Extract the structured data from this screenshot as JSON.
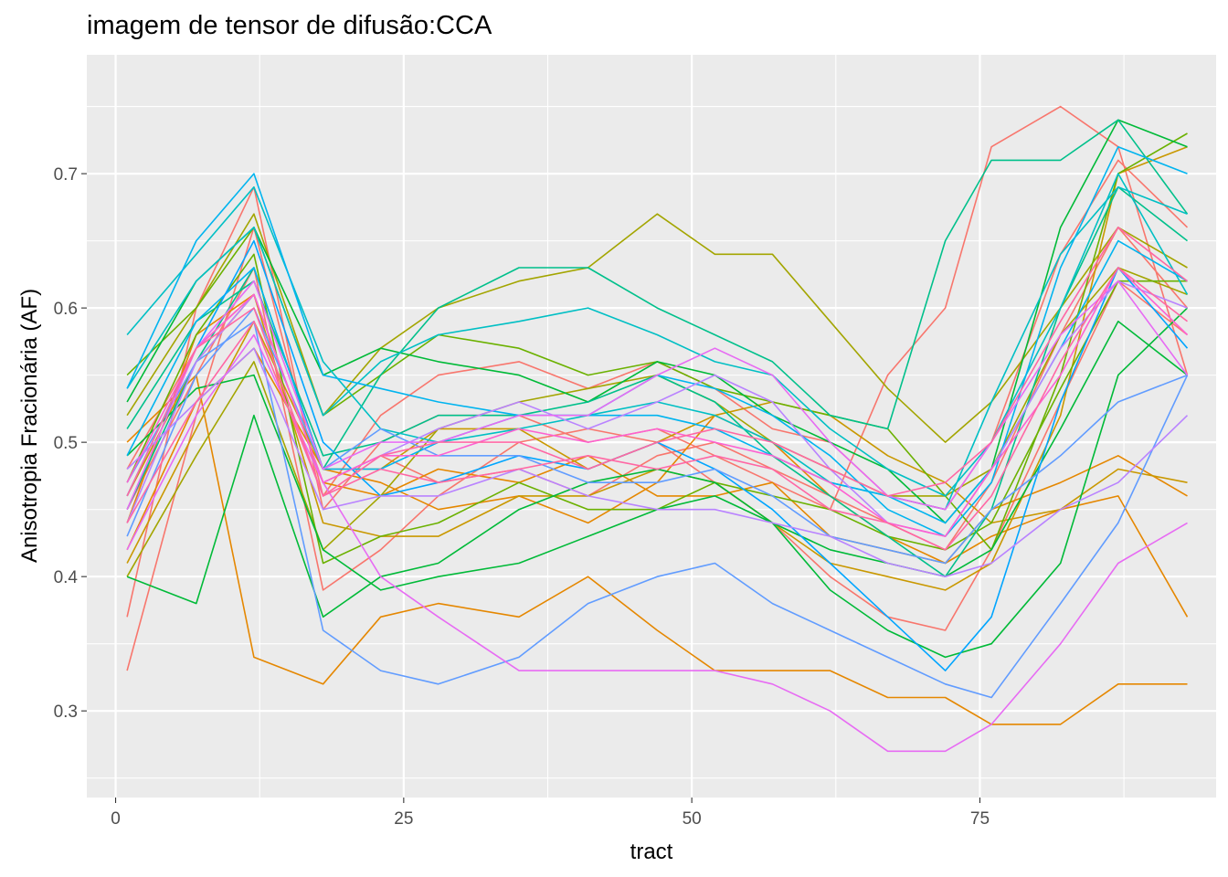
{
  "chart_data": {
    "type": "line",
    "title": "imagem de tensor de difusão:CCA",
    "xlabel": "tract",
    "ylabel": "Anisotropia Fracionária (AF)",
    "xlim": [
      -2.5,
      95.5
    ],
    "ylim": [
      0.2355,
      0.7885
    ],
    "x_ticks": [
      0,
      25,
      50,
      75
    ],
    "x_tick_labels": [
      "0",
      "25",
      "50",
      "75"
    ],
    "y_ticks": [
      0.3,
      0.4,
      0.5,
      0.6,
      0.7
    ],
    "y_tick_labels": [
      "0.3",
      "0.4",
      "0.5",
      "0.6",
      "0.7"
    ],
    "grid": true,
    "legend": "none",
    "x": [
      1,
      7,
      12,
      18,
      23,
      28,
      35,
      41,
      47,
      52,
      57,
      62,
      67,
      72,
      76,
      82,
      87,
      93
    ],
    "series": [
      {
        "color": "#F8766D",
        "values": [
          0.48,
          0.57,
          0.61,
          0.47,
          0.49,
          0.47,
          0.48,
          0.46,
          0.49,
          0.5,
          0.48,
          0.46,
          0.44,
          0.42,
          0.47,
          0.58,
          0.66,
          0.6
        ]
      },
      {
        "color": "#F8766D",
        "values": [
          0.37,
          0.6,
          0.69,
          0.45,
          0.5,
          0.52,
          0.52,
          0.5,
          0.51,
          0.49,
          0.47,
          0.45,
          0.55,
          0.6,
          0.72,
          0.75,
          0.72,
          0.55
        ]
      },
      {
        "color": "#F8766D",
        "values": [
          0.45,
          0.55,
          0.63,
          0.39,
          0.42,
          0.46,
          0.5,
          0.51,
          0.5,
          0.47,
          0.44,
          0.4,
          0.37,
          0.36,
          0.42,
          0.53,
          0.62,
          0.58
        ]
      },
      {
        "color": "#F8766D",
        "values": [
          0.33,
          0.52,
          0.66,
          0.46,
          0.52,
          0.55,
          0.56,
          0.54,
          0.56,
          0.54,
          0.51,
          0.5,
          0.46,
          0.45,
          0.5,
          0.64,
          0.71,
          0.66
        ]
      },
      {
        "color": "#E58700",
        "values": [
          0.42,
          0.53,
          0.57,
          0.48,
          0.47,
          0.45,
          0.46,
          0.44,
          0.47,
          0.52,
          0.5,
          0.46,
          0.43,
          0.41,
          0.45,
          0.47,
          0.49,
          0.46
        ]
      },
      {
        "color": "#E58700",
        "values": [
          0.5,
          0.55,
          0.34,
          0.32,
          0.37,
          0.38,
          0.37,
          0.4,
          0.36,
          0.33,
          0.33,
          0.33,
          0.31,
          0.31,
          0.29,
          0.29,
          0.32,
          0.32
        ]
      },
      {
        "color": "#E58700",
        "values": [
          0.44,
          0.58,
          0.61,
          0.47,
          0.46,
          0.48,
          0.47,
          0.49,
          0.46,
          0.46,
          0.47,
          0.43,
          0.42,
          0.41,
          0.43,
          0.45,
          0.46,
          0.37
        ]
      },
      {
        "color": "#C99800",
        "values": [
          0.46,
          0.56,
          0.61,
          0.44,
          0.43,
          0.43,
          0.46,
          0.46,
          0.48,
          0.47,
          0.44,
          0.41,
          0.4,
          0.39,
          0.41,
          0.52,
          0.7,
          0.72
        ]
      },
      {
        "color": "#C99800",
        "values": [
          0.41,
          0.51,
          0.59,
          0.48,
          0.48,
          0.51,
          0.51,
          0.48,
          0.5,
          0.52,
          0.53,
          0.52,
          0.49,
          0.47,
          0.44,
          0.45,
          0.48,
          0.47
        ]
      },
      {
        "color": "#A3A500",
        "values": [
          0.52,
          0.6,
          0.67,
          0.52,
          0.57,
          0.6,
          0.62,
          0.63,
          0.67,
          0.64,
          0.64,
          0.59,
          0.54,
          0.5,
          0.53,
          0.6,
          0.66,
          0.63
        ]
      },
      {
        "color": "#A3A500",
        "values": [
          0.4,
          0.49,
          0.56,
          0.42,
          0.46,
          0.51,
          0.53,
          0.54,
          0.55,
          0.53,
          0.5,
          0.48,
          0.46,
          0.46,
          0.48,
          0.58,
          0.63,
          0.61
        ]
      },
      {
        "color": "#6BB100",
        "values": [
          0.55,
          0.6,
          0.66,
          0.52,
          0.55,
          0.58,
          0.57,
          0.55,
          0.56,
          0.54,
          0.53,
          0.52,
          0.51,
          0.46,
          0.42,
          0.55,
          0.7,
          0.73
        ]
      },
      {
        "color": "#6BB100",
        "values": [
          0.47,
          0.58,
          0.64,
          0.41,
          0.43,
          0.44,
          0.47,
          0.45,
          0.45,
          0.47,
          0.46,
          0.45,
          0.43,
          0.42,
          0.44,
          0.54,
          0.62,
          0.62
        ]
      },
      {
        "color": "#00BA38",
        "values": [
          0.4,
          0.38,
          0.52,
          0.37,
          0.4,
          0.41,
          0.45,
          0.47,
          0.48,
          0.47,
          0.44,
          0.39,
          0.36,
          0.34,
          0.35,
          0.41,
          0.55,
          0.6
        ]
      },
      {
        "color": "#00BA38",
        "values": [
          0.53,
          0.62,
          0.66,
          0.55,
          0.57,
          0.56,
          0.55,
          0.53,
          0.56,
          0.55,
          0.52,
          0.5,
          0.48,
          0.44,
          0.48,
          0.66,
          0.74,
          0.72
        ]
      },
      {
        "color": "#00BA38",
        "values": [
          0.49,
          0.54,
          0.55,
          0.42,
          0.39,
          0.4,
          0.41,
          0.43,
          0.45,
          0.46,
          0.44,
          0.42,
          0.41,
          0.4,
          0.42,
          0.51,
          0.59,
          0.55
        ]
      },
      {
        "color": "#00C08B",
        "values": [
          0.45,
          0.56,
          0.63,
          0.48,
          0.55,
          0.6,
          0.63,
          0.63,
          0.6,
          0.58,
          0.56,
          0.52,
          0.51,
          0.65,
          0.71,
          0.71,
          0.74,
          0.67
        ]
      },
      {
        "color": "#00C08B",
        "values": [
          0.51,
          0.59,
          0.62,
          0.49,
          0.5,
          0.52,
          0.52,
          0.53,
          0.55,
          0.53,
          0.49,
          0.46,
          0.43,
          0.4,
          0.45,
          0.6,
          0.69,
          0.65
        ]
      },
      {
        "color": "#00BFC4",
        "values": [
          0.58,
          0.64,
          0.69,
          0.56,
          0.51,
          0.5,
          0.51,
          0.52,
          0.53,
          0.52,
          0.5,
          0.47,
          0.46,
          0.45,
          0.53,
          0.64,
          0.69,
          0.67
        ]
      },
      {
        "color": "#00BFC4",
        "values": [
          0.54,
          0.62,
          0.66,
          0.52,
          0.56,
          0.58,
          0.59,
          0.6,
          0.58,
          0.56,
          0.55,
          0.51,
          0.48,
          0.46,
          0.5,
          0.6,
          0.7,
          0.61
        ]
      },
      {
        "color": "#00B4EF",
        "values": [
          0.54,
          0.65,
          0.7,
          0.55,
          0.54,
          0.53,
          0.52,
          0.52,
          0.55,
          0.54,
          0.52,
          0.49,
          0.45,
          0.43,
          0.47,
          0.63,
          0.72,
          0.7
        ]
      },
      {
        "color": "#00B4EF",
        "values": [
          0.49,
          0.59,
          0.63,
          0.48,
          0.48,
          0.5,
          0.52,
          0.52,
          0.52,
          0.51,
          0.49,
          0.47,
          0.46,
          0.44,
          0.48,
          0.57,
          0.65,
          0.62
        ]
      },
      {
        "color": "#00A5FF",
        "values": [
          0.46,
          0.57,
          0.65,
          0.5,
          0.46,
          0.47,
          0.49,
          0.48,
          0.5,
          0.48,
          0.45,
          0.41,
          0.37,
          0.33,
          0.37,
          0.53,
          0.63,
          0.57
        ]
      },
      {
        "color": "#619CFF",
        "values": [
          0.47,
          0.56,
          0.59,
          0.36,
          0.33,
          0.32,
          0.34,
          0.38,
          0.4,
          0.41,
          0.38,
          0.36,
          0.34,
          0.32,
          0.31,
          0.38,
          0.44,
          0.55
        ]
      },
      {
        "color": "#619CFF",
        "values": [
          0.43,
          0.55,
          0.6,
          0.48,
          0.51,
          0.49,
          0.49,
          0.47,
          0.47,
          0.48,
          0.46,
          0.43,
          0.42,
          0.41,
          0.45,
          0.49,
          0.53,
          0.55
        ]
      },
      {
        "color": "#B983FF",
        "values": [
          0.48,
          0.53,
          0.57,
          0.45,
          0.46,
          0.46,
          0.48,
          0.46,
          0.45,
          0.45,
          0.44,
          0.43,
          0.41,
          0.4,
          0.41,
          0.45,
          0.47,
          0.52
        ]
      },
      {
        "color": "#B983FF",
        "values": [
          0.44,
          0.56,
          0.61,
          0.47,
          0.49,
          0.51,
          0.53,
          0.51,
          0.53,
          0.55,
          0.53,
          0.48,
          0.44,
          0.43,
          0.48,
          0.57,
          0.62,
          0.6
        ]
      },
      {
        "color": "#E76BF3",
        "values": [
          0.42,
          0.52,
          0.58,
          0.47,
          0.4,
          0.37,
          0.33,
          0.33,
          0.33,
          0.33,
          0.32,
          0.3,
          0.27,
          0.27,
          0.29,
          0.35,
          0.41,
          0.44
        ]
      },
      {
        "color": "#E76BF3",
        "values": [
          0.45,
          0.57,
          0.62,
          0.48,
          0.5,
          0.5,
          0.52,
          0.52,
          0.55,
          0.57,
          0.55,
          0.5,
          0.46,
          0.45,
          0.5,
          0.58,
          0.62,
          0.55
        ]
      },
      {
        "color": "#FD61D1",
        "values": [
          0.47,
          0.57,
          0.61,
          0.47,
          0.49,
          0.49,
          0.51,
          0.5,
          0.51,
          0.5,
          0.49,
          0.47,
          0.44,
          0.43,
          0.48,
          0.55,
          0.63,
          0.58
        ]
      },
      {
        "color": "#FF67A4",
        "values": [
          0.46,
          0.57,
          0.6,
          0.46,
          0.48,
          0.47,
          0.48,
          0.49,
          0.48,
          0.49,
          0.48,
          0.45,
          0.44,
          0.42,
          0.46,
          0.56,
          0.63,
          0.59
        ]
      },
      {
        "color": "#FF67A4",
        "values": [
          0.44,
          0.53,
          0.59,
          0.46,
          0.49,
          0.5,
          0.5,
          0.48,
          0.5,
          0.51,
          0.5,
          0.48,
          0.46,
          0.47,
          0.5,
          0.59,
          0.66,
          0.62
        ]
      }
    ]
  }
}
